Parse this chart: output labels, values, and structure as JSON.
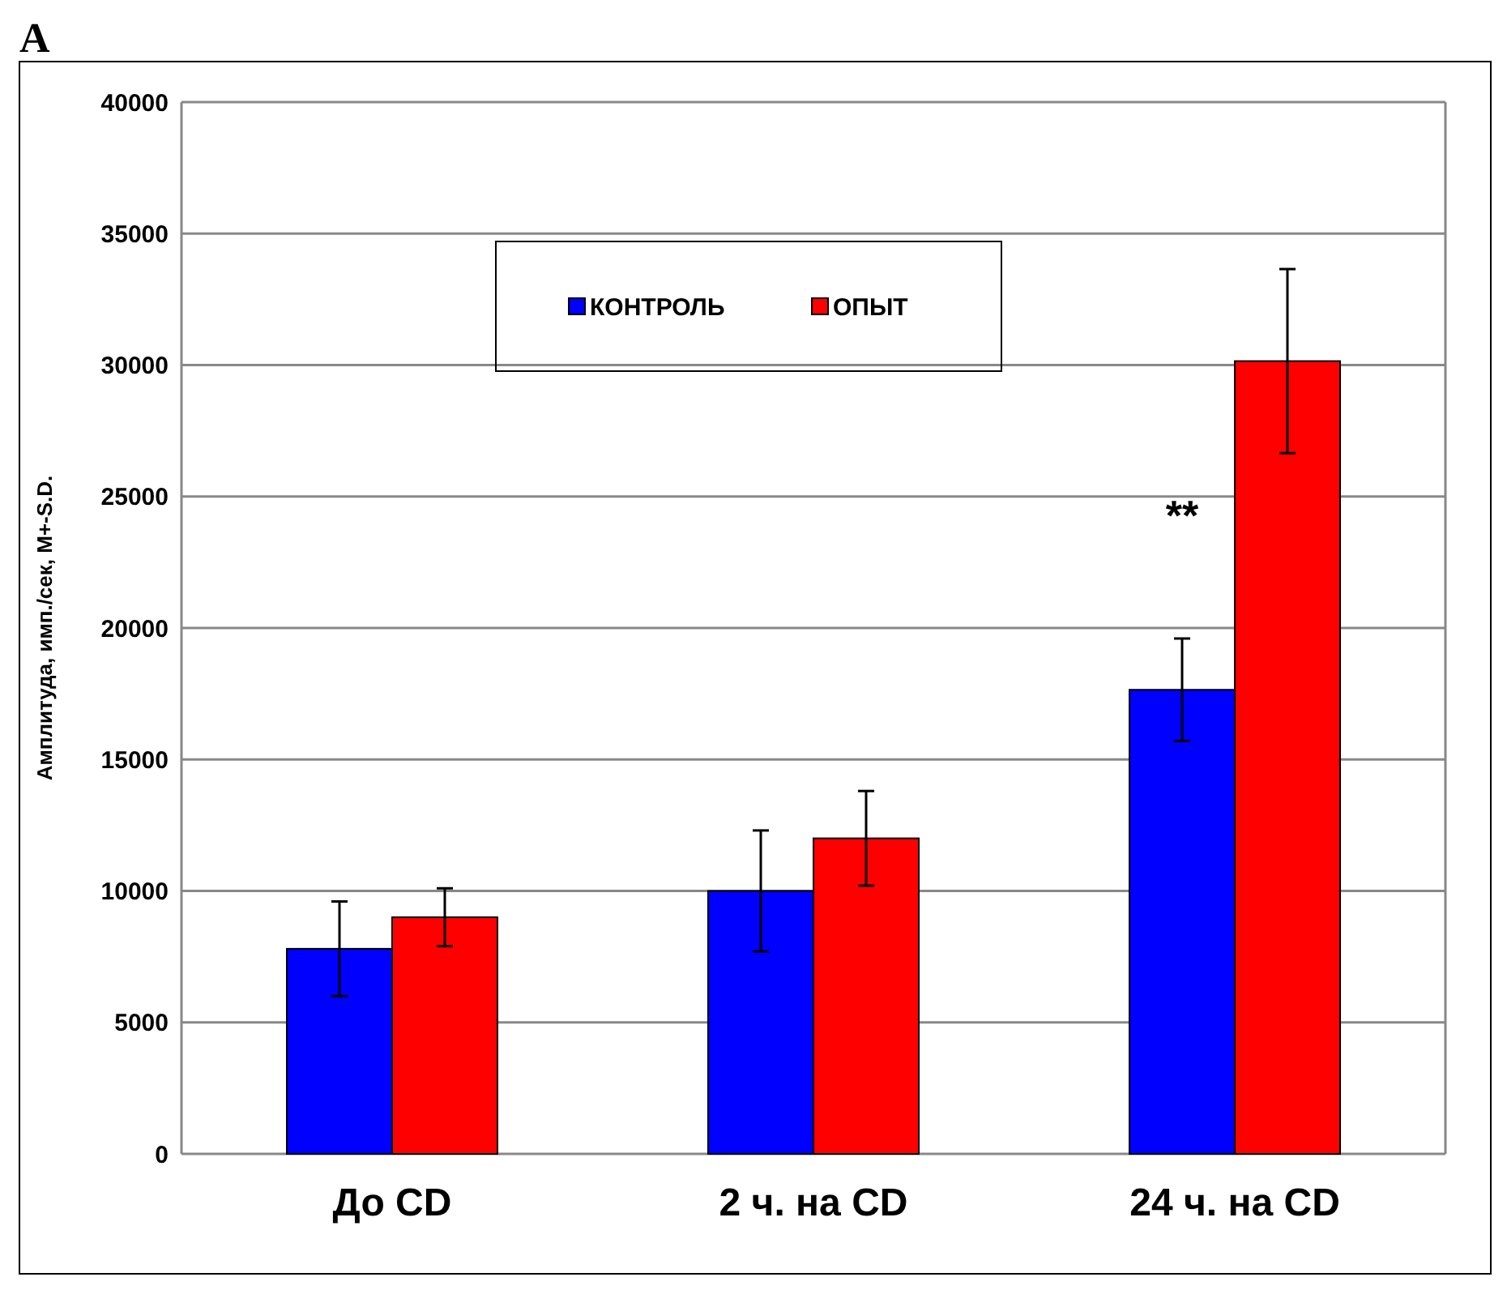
{
  "chart_data": {
    "type": "bar",
    "ylabel": "Амплитуда, имп./сек, M+-S.D.",
    "categories": [
      "До CD",
      "2 ч. на CD",
      "24 ч. на CD"
    ],
    "series": [
      {
        "name": "КОНТРОЛЬ",
        "color": "#0000ff",
        "values": [
          7800,
          10000,
          17650
        ],
        "errors": [
          1800,
          2300,
          1950
        ]
      },
      {
        "name": "ОПЫТ",
        "color": "#ff0000",
        "values": [
          9000,
          12000,
          30150
        ],
        "errors": [
          1100,
          1800,
          3500
        ]
      }
    ],
    "ylim": [
      0,
      40000
    ],
    "yticks": [
      0,
      5000,
      10000,
      15000,
      20000,
      25000,
      30000,
      35000,
      40000
    ],
    "grid": "y",
    "legend": "top",
    "annotations": [
      "А",
      {
        "text": "**",
        "x": "24 ч. на CD",
        "y": 24300
      }
    ]
  }
}
